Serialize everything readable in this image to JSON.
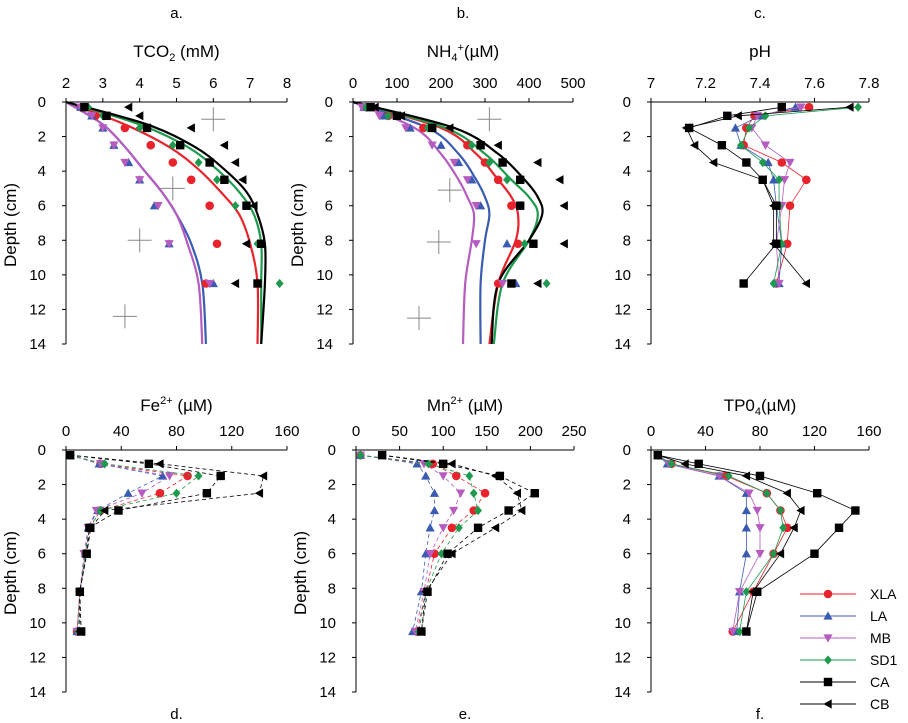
{
  "figure": {
    "ylabel": "Depth (cm)"
  },
  "colors": {
    "XLA": "#e8232c",
    "LA": "#3a5bb2",
    "MB": "#b65cc0",
    "SD1": "#1e9a4e",
    "CA": "#000000",
    "CB": "#000000"
  },
  "legend": [
    "XLA",
    "LA",
    "MB",
    "SD1",
    "CA",
    "CB"
  ],
  "chart_data": [
    {
      "id": "a",
      "panel_label": "a.",
      "type": "scatter",
      "title": "TCO2 (mM)",
      "title_parts": [
        "TCO",
        "2",
        " (mM)"
      ],
      "x_ticks": [
        2,
        3,
        4,
        5,
        6,
        7,
        8
      ],
      "xlim": [
        2,
        8
      ],
      "ylim": [
        0,
        14
      ],
      "y_ticks": [
        0,
        2,
        4,
        6,
        8,
        10,
        12,
        14
      ],
      "depths": [
        0.3,
        0.8,
        1.5,
        2.5,
        3.5,
        4.5,
        6,
        8.2,
        10.5
      ],
      "series": [
        {
          "name": "XLA",
          "x": [
            2.5,
            2.8,
            3.6,
            4.3,
            4.9,
            5.4,
            5.9,
            6.1,
            5.8
          ]
        },
        {
          "name": "LA",
          "x": [
            2.4,
            2.7,
            3.0,
            3.3,
            3.7,
            4.0,
            4.4,
            4.8,
            6.0
          ]
        },
        {
          "name": "MB",
          "x": [
            2.4,
            2.7,
            3.0,
            3.3,
            3.6,
            4.0,
            4.5,
            4.8,
            5.9
          ]
        },
        {
          "name": "SD1",
          "x": [
            2.6,
            3.0,
            4.0,
            4.9,
            5.6,
            6.1,
            6.6,
            7.2,
            7.8
          ]
        },
        {
          "name": "CA",
          "x": [
            2.5,
            3.1,
            4.2,
            5.1,
            5.9,
            6.3,
            6.9,
            7.3,
            7.2
          ]
        },
        {
          "name": "CB",
          "x": [
            3.7,
            4.0,
            5.4,
            6.3,
            6.6,
            6.8,
            7.1,
            6.9,
            6.6
          ]
        }
      ],
      "fits": [
        {
          "name": "XLA",
          "x": [
            2,
            3.6,
            4.8,
            5.6,
            6.2,
            6.7,
            7.0,
            7.2,
            7.2
          ]
        },
        {
          "name": "LA",
          "x": [
            2,
            3.0,
            3.6,
            4.1,
            4.6,
            5.0,
            5.4,
            5.7,
            5.8
          ]
        },
        {
          "name": "MB",
          "x": [
            2,
            3.0,
            3.6,
            4.1,
            4.6,
            5.0,
            5.3,
            5.6,
            5.7
          ]
        },
        {
          "name": "SD1",
          "x": [
            2,
            4.0,
            5.3,
            6.1,
            6.7,
            7.1,
            7.3,
            7.3,
            7.3
          ]
        },
        {
          "name": "CA",
          "x": [
            2,
            4.2,
            5.5,
            6.3,
            6.9,
            7.2,
            7.4,
            7.4,
            7.3
          ]
        }
      ],
      "fit_depths": [
        0,
        1.3,
        2.6,
        3.9,
        5.2,
        6.5,
        8.2,
        10.5,
        14
      ],
      "crosses": [
        [
          6.0,
          1.0
        ],
        [
          4.9,
          5.0
        ],
        [
          4.0,
          8.0
        ],
        [
          3.6,
          12.4
        ]
      ]
    },
    {
      "id": "b",
      "panel_label": "b.",
      "type": "scatter",
      "title": "NH4+(µM)",
      "title_parts": [
        "NH",
        "4",
        "+",
        "(µM)"
      ],
      "x_ticks": [
        0,
        100,
        200,
        300,
        400,
        500
      ],
      "xlim": [
        0,
        500
      ],
      "ylim": [
        0,
        14
      ],
      "y_ticks": [
        0,
        2,
        4,
        6,
        8,
        10,
        12,
        14
      ],
      "depths": [
        0.3,
        0.8,
        1.5,
        2.5,
        3.5,
        4.5,
        6,
        8.2,
        10.5
      ],
      "series": [
        {
          "name": "XLA",
          "x": [
            30,
            80,
            160,
            260,
            300,
            330,
            360,
            375,
            330
          ]
        },
        {
          "name": "LA",
          "x": [
            25,
            70,
            130,
            200,
            240,
            270,
            290,
            350,
            370
          ]
        },
        {
          "name": "MB",
          "x": [
            20,
            60,
            120,
            180,
            230,
            260,
            280,
            280,
            340
          ]
        },
        {
          "name": "SD1",
          "x": [
            30,
            80,
            170,
            270,
            310,
            350,
            380,
            390,
            440
          ]
        },
        {
          "name": "CA",
          "x": [
            40,
            100,
            180,
            290,
            340,
            380,
            380,
            410,
            360
          ]
        },
        {
          "name": "CB",
          "x": [
            50,
            110,
            220,
            330,
            420,
            470,
            480,
            480,
            420
          ]
        }
      ],
      "fits": [
        {
          "name": "XLA",
          "x": [
            0,
            200,
            280,
            330,
            360,
            375,
            370,
            330,
            310
          ]
        },
        {
          "name": "LA",
          "x": [
            0,
            170,
            240,
            280,
            300,
            310,
            300,
            290,
            290
          ]
        },
        {
          "name": "MB",
          "x": [
            0,
            140,
            200,
            240,
            260,
            275,
            270,
            255,
            250
          ]
        },
        {
          "name": "SD1",
          "x": [
            0,
            210,
            300,
            360,
            400,
            420,
            400,
            340,
            320
          ]
        },
        {
          "name": "CA",
          "x": [
            0,
            230,
            330,
            390,
            420,
            430,
            400,
            330,
            315
          ]
        }
      ],
      "fit_depths": [
        0,
        1.5,
        3,
        4.5,
        5.5,
        6.5,
        8,
        10.5,
        14
      ],
      "crosses": [
        [
          310,
          1.0
        ],
        [
          220,
          5.1
        ],
        [
          195,
          8.1
        ],
        [
          150,
          12.5
        ]
      ]
    },
    {
      "id": "c",
      "panel_label": "c.",
      "type": "scatter",
      "title": "pH",
      "x_ticks": [
        "7",
        "7.2",
        "7.4",
        "7.6",
        "7.8"
      ],
      "xlim": [
        7,
        7.8
      ],
      "ylim": [
        0,
        14
      ],
      "y_ticks": [
        0,
        2,
        4,
        6,
        8,
        10,
        12,
        14
      ],
      "depths": [
        0.3,
        0.8,
        1.5,
        2.5,
        3.5,
        4.5,
        6,
        8.2,
        10.5
      ],
      "series": [
        {
          "name": "XLA",
          "x": [
            7.58,
            7.38,
            7.35,
            7.34,
            7.48,
            7.57,
            7.51,
            7.5,
            7.46
          ]
        },
        {
          "name": "LA",
          "x": [
            7.53,
            7.4,
            7.31,
            7.33,
            7.43,
            7.45,
            7.46,
            7.48,
            7.47
          ]
        },
        {
          "name": "MB",
          "x": [
            7.55,
            7.39,
            7.37,
            7.42,
            7.51,
            7.49,
            7.48,
            7.46,
            7.47
          ]
        },
        {
          "name": "SD1",
          "x": [
            7.76,
            7.42,
            7.36,
            7.33,
            7.41,
            7.47,
            7.47,
            7.48,
            7.45
          ]
        },
        {
          "name": "CA",
          "x": [
            7.48,
            7.28,
            7.14,
            7.26,
            7.35,
            7.41,
            7.46,
            7.46,
            7.34
          ]
        },
        {
          "name": "CB",
          "x": [
            7.73,
            7.32,
            7.13,
            7.16,
            7.23,
            7.41,
            7.45,
            7.45,
            7.57
          ]
        }
      ]
    },
    {
      "id": "d",
      "panel_label": "d.",
      "type": "scatter",
      "title": "Fe2+ (µM)",
      "title_parts": [
        "Fe",
        "2+",
        " (µM)"
      ],
      "x_ticks": [
        0,
        40,
        80,
        120,
        160
      ],
      "xlim": [
        0,
        160
      ],
      "ylim": [
        0,
        14
      ],
      "y_ticks": [
        0,
        2,
        4,
        6,
        8,
        10,
        12,
        14
      ],
      "depths": [
        0.3,
        0.8,
        1.5,
        2.5,
        3.5,
        4.5,
        6,
        8.2,
        10.5
      ],
      "series": [
        {
          "name": "XLA",
          "x": [
            3,
            25,
            88,
            68,
            25,
            17,
            14,
            10,
            8
          ]
        },
        {
          "name": "LA",
          "x": [
            3,
            24,
            70,
            45,
            23,
            16,
            14,
            10,
            8
          ]
        },
        {
          "name": "MB",
          "x": [
            3,
            25,
            75,
            55,
            22,
            16,
            13,
            10,
            8
          ]
        },
        {
          "name": "SD1",
          "x": [
            3,
            28,
            96,
            80,
            25,
            17,
            14,
            10,
            9
          ]
        },
        {
          "name": "CA",
          "x": [
            3,
            60,
            112,
            102,
            38,
            17,
            15,
            10,
            11
          ]
        },
        {
          "name": "CB",
          "x": [
            3,
            68,
            143,
            140,
            28,
            18,
            15,
            10,
            10
          ]
        }
      ]
    },
    {
      "id": "e",
      "panel_label": "e.",
      "type": "scatter",
      "title": "Mn2+ (µM)",
      "title_parts": [
        "Mn",
        "2+",
        " (µM)"
      ],
      "x_ticks": [
        0,
        50,
        100,
        150,
        200,
        250
      ],
      "xlim": [
        0,
        250
      ],
      "ylim": [
        0,
        14
      ],
      "y_ticks": [
        0,
        2,
        4,
        6,
        8,
        10,
        12,
        14
      ],
      "depths": [
        0.3,
        0.8,
        1.5,
        2.5,
        3.5,
        4.5,
        6,
        8.2,
        10.5
      ],
      "series": [
        {
          "name": "XLA",
          "x": [
            5,
            88,
            115,
            148,
            135,
            110,
            90,
            80,
            70
          ]
        },
        {
          "name": "LA",
          "x": [
            5,
            70,
            80,
            90,
            90,
            85,
            80,
            75,
            65
          ]
        },
        {
          "name": "MB",
          "x": [
            5,
            78,
            100,
            120,
            112,
            100,
            85,
            78,
            68
          ]
        },
        {
          "name": "SD1",
          "x": [
            5,
            83,
            130,
            135,
            140,
            118,
            98,
            80,
            72
          ]
        },
        {
          "name": "CA",
          "x": [
            30,
            100,
            165,
            205,
            175,
            140,
            105,
            82,
            75
          ]
        },
        {
          "name": "CB",
          "x": [
            30,
            110,
            160,
            185,
            190,
            160,
            110,
            80,
            75
          ]
        }
      ]
    },
    {
      "id": "f",
      "panel_label": "f.",
      "type": "scatter",
      "title": "TP04(µM)",
      "title_parts": [
        "TP0",
        "4",
        "(µM)"
      ],
      "x_ticks": [
        0,
        40,
        80,
        120,
        160
      ],
      "xlim": [
        0,
        160
      ],
      "ylim": [
        0,
        14
      ],
      "y_ticks": [
        0,
        2,
        4,
        6,
        8,
        10,
        12,
        14
      ],
      "depths": [
        0.3,
        0.8,
        1.5,
        2.5,
        3.5,
        4.5,
        6,
        8.2,
        10.5
      ],
      "series": [
        {
          "name": "XLA",
          "x": [
            5,
            15,
            55,
            85,
            95,
            100,
            90,
            75,
            60
          ]
        },
        {
          "name": "LA",
          "x": [
            5,
            12,
            50,
            70,
            70,
            70,
            70,
            65,
            63
          ]
        },
        {
          "name": "MB",
          "x": [
            5,
            13,
            50,
            72,
            78,
            80,
            80,
            65,
            60
          ]
        },
        {
          "name": "SD1",
          "x": [
            5,
            15,
            57,
            85,
            95,
            97,
            90,
            70,
            65
          ]
        },
        {
          "name": "CA",
          "x": [
            5,
            35,
            80,
            122,
            150,
            138,
            120,
            78,
            70
          ]
        },
        {
          "name": "CB",
          "x": [
            5,
            25,
            70,
            100,
            110,
            105,
            95,
            75,
            70
          ]
        }
      ]
    }
  ]
}
